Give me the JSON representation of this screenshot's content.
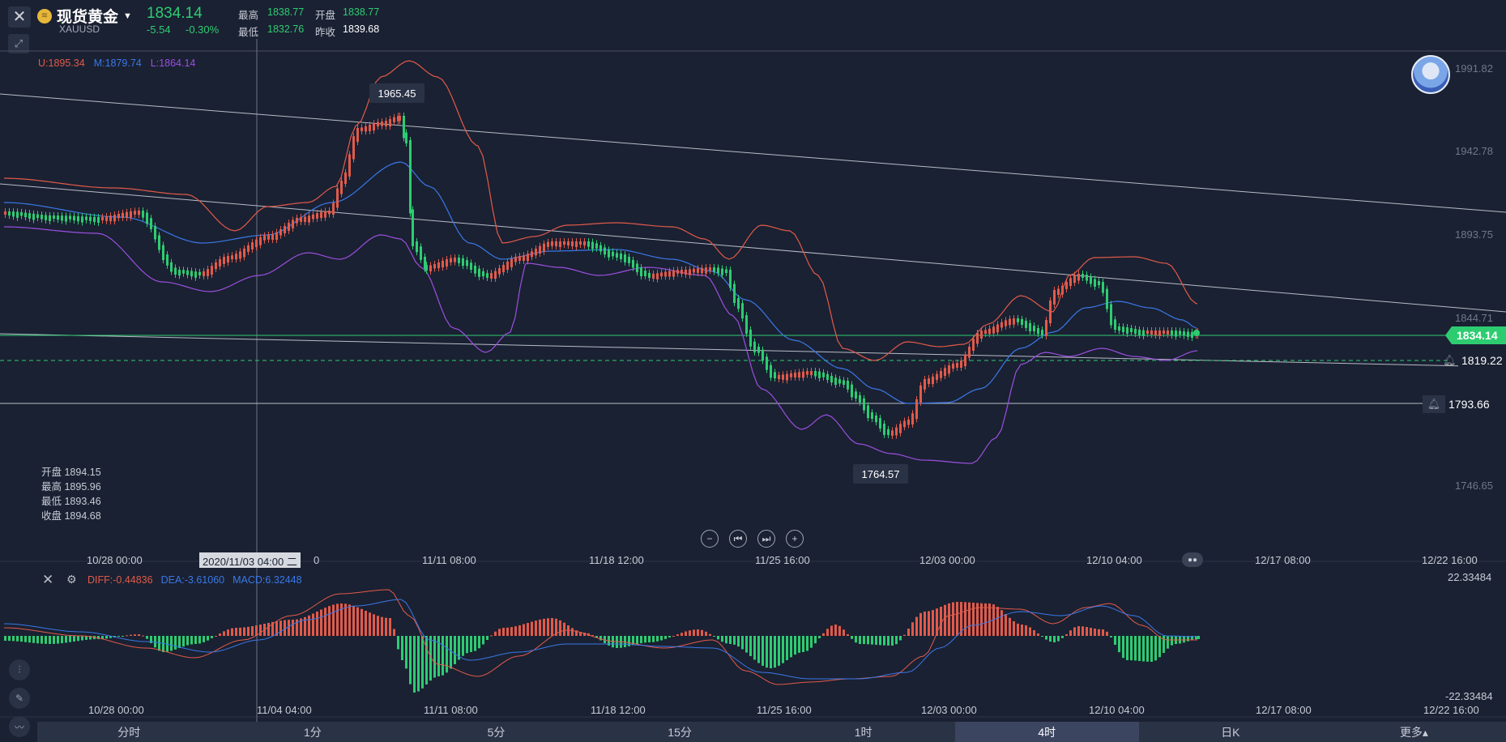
{
  "header": {
    "symbol_name": "现货黄金",
    "symbol_code": "XAUUSD",
    "last_price": "1834.14",
    "change_abs": "-5.54",
    "change_pct": "-0.30%",
    "high_label": "最高",
    "high_value": "1838.77",
    "open_label": "开盘",
    "open_value": "1838.77",
    "low_label": "最低",
    "low_value": "1832.76",
    "prev_close_label": "昨收",
    "prev_close_value": "1839.68"
  },
  "bollinger": {
    "upper": "U:1895.34",
    "middle": "M:1879.74",
    "lower": "L:1864.14"
  },
  "macd_legend": {
    "diff": "DIFF:-0.44836",
    "dea": "DEA:-3.61060",
    "macd": "MACD:6.32448"
  },
  "ohlc_info": {
    "open": "开盘 1894.15",
    "high": "最高 1895.96",
    "low": "最低 1893.46",
    "close": "收盘 1894.68"
  },
  "price_axis": [
    "1991.82",
    "1942.78",
    "1893.75",
    "1844.71",
    "1746.65"
  ],
  "macd_axis": {
    "top": "22.33484",
    "bottom": "-22.33484"
  },
  "x_ticks": [
    "10/28 00:00",
    "11/11 08:00",
    "11/18 12:00",
    "11/25 16:00",
    "12/03 00:00",
    "12/10 04:00",
    "12/17 08:00",
    "12/22 16:00"
  ],
  "x_ticks_macd": [
    "10/28 00:00",
    "11/04 04:00",
    "11/11 08:00",
    "11/18 12:00",
    "11/25 16:00",
    "12/03 00:00",
    "12/10 04:00",
    "12/17 08:00",
    "12/22 16:00"
  ],
  "crosshair_time": "2020/11/03 04:00 二",
  "crosshair_tail": "0",
  "annotations": {
    "max": "1965.45",
    "min": "1764.57"
  },
  "price_tags": {
    "current": "1834.14",
    "alert1": "1819.22",
    "alert2": "1793.66"
  },
  "timeframes": [
    "分时",
    "1分",
    "5分",
    "15分",
    "1时",
    "4时",
    "日K",
    "更多▴"
  ],
  "active_timeframe": 5,
  "colors": {
    "up": "#e25a4a",
    "down": "#2ecc71",
    "upper_band": "#e25a4a",
    "middle_band": "#3a78e8",
    "lower_band": "#9b4fe0",
    "background": "#1a2132"
  }
}
